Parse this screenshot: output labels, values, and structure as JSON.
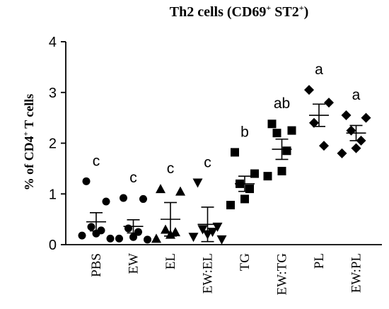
{
  "chart_data": {
    "type": "scatter",
    "title": "Th2 cells (CD69",
    "title_sup1": "+",
    "title_mid": " ST2",
    "title_sup2": "+",
    "title_end": ")",
    "ylabel": "% of CD4",
    "ylabel_sup": "+",
    "ylabel_end": " T cells",
    "ylim": [
      0,
      4
    ],
    "yticks": [
      "0",
      "1",
      "2",
      "3",
      "4"
    ],
    "categories": [
      "PBS",
      "EW",
      "EL",
      "EW:EL",
      "TG",
      "EW:TG",
      "PL",
      "EW:PL"
    ],
    "groups": [
      {
        "name": "PBS",
        "marker": "circle",
        "letter": "c",
        "mean": 0.45,
        "sem": 0.18,
        "points": [
          1.25,
          0.85,
          0.35,
          0.28,
          0.22,
          0.18,
          0.12
        ]
      },
      {
        "name": "EW",
        "marker": "circle",
        "letter": "c",
        "mean": 0.36,
        "sem": 0.13,
        "points": [
          0.92,
          0.9,
          0.32,
          0.25,
          0.15,
          0.12,
          0.1
        ]
      },
      {
        "name": "EL",
        "marker": "triangle",
        "letter": "c",
        "mean": 0.5,
        "sem": 0.33,
        "points": [
          1.1,
          1.05,
          0.3,
          0.25,
          0.2,
          0.12
        ]
      },
      {
        "name": "EW:EL",
        "marker": "triangle-down",
        "letter": "c",
        "mean": 0.4,
        "sem": 0.34,
        "points": [
          1.22,
          0.35,
          0.3,
          0.25,
          0.2,
          0.15,
          0.1
        ]
      },
      {
        "name": "TG",
        "marker": "square",
        "letter": "b",
        "mean": 1.2,
        "sem": 0.15,
        "points": [
          1.82,
          1.4,
          1.2,
          1.1,
          0.9,
          0.78
        ]
      },
      {
        "name": "EW:TG",
        "marker": "square",
        "letter": "ab",
        "mean": 1.88,
        "sem": 0.2,
        "points": [
          2.38,
          2.25,
          2.2,
          1.85,
          1.45,
          1.35
        ]
      },
      {
        "name": "PL",
        "marker": "diamond",
        "letter": "a",
        "mean": 2.55,
        "sem": 0.22,
        "points": [
          3.05,
          2.8,
          2.4,
          1.95
        ]
      },
      {
        "name": "EW:PL",
        "marker": "diamond",
        "letter": "a",
        "mean": 2.2,
        "sem": 0.15,
        "points": [
          2.55,
          2.5,
          2.25,
          2.05,
          1.9,
          1.8
        ]
      }
    ]
  }
}
